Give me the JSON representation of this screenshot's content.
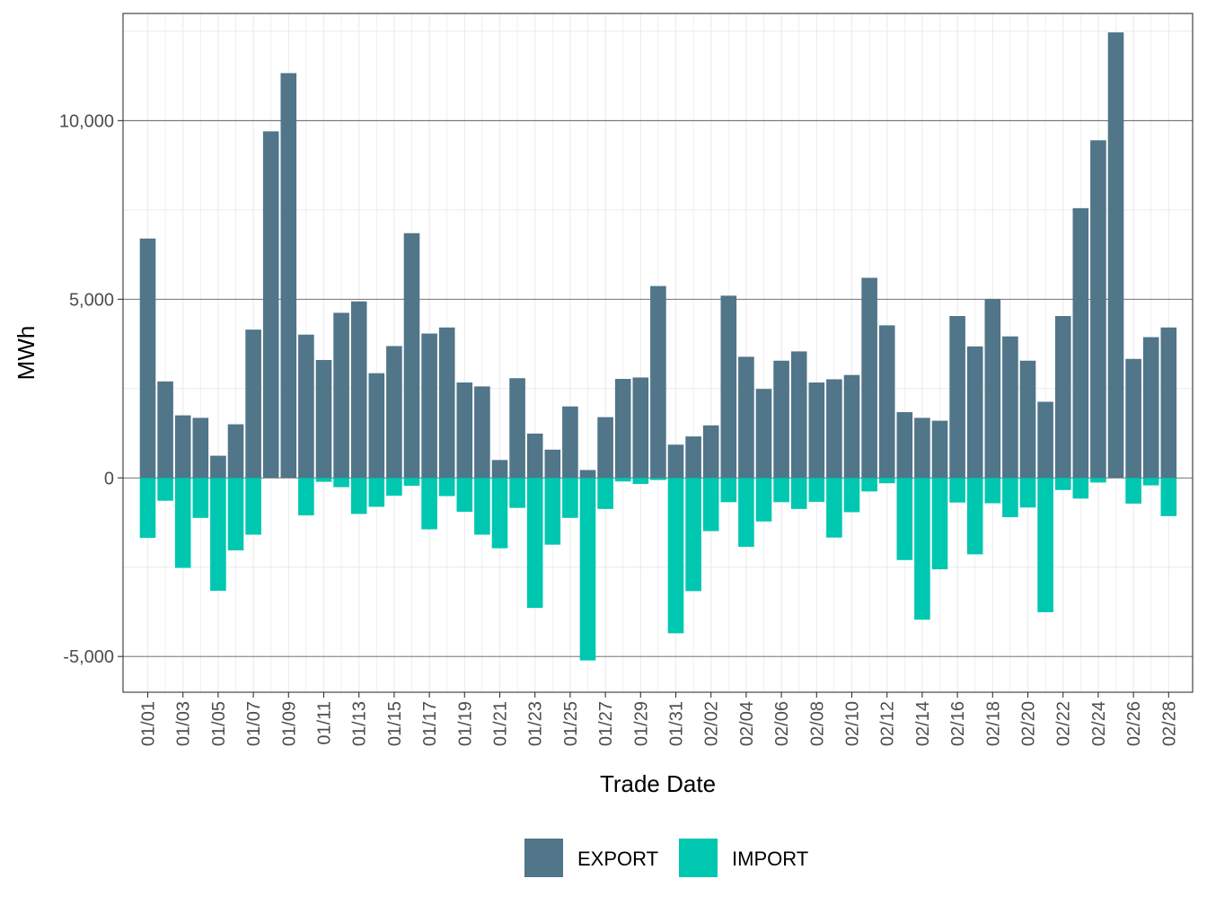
{
  "chart_data": {
    "type": "bar",
    "stacked": true,
    "xlabel": "Trade Date",
    "ylabel": "MWh",
    "ylim": [
      -6000,
      13000
    ],
    "yticks": [
      -5000,
      0,
      5000,
      10000
    ],
    "ytick_labels": [
      "-5,000",
      "0",
      "5,000",
      "10,000"
    ],
    "grid": true,
    "legend_position": "bottom",
    "categories": [
      "01/01",
      "01/02",
      "01/03",
      "01/04",
      "01/05",
      "01/06",
      "01/07",
      "01/08",
      "01/09",
      "01/10",
      "01/11",
      "01/12",
      "01/13",
      "01/14",
      "01/15",
      "01/16",
      "01/17",
      "01/18",
      "01/19",
      "01/20",
      "01/21",
      "01/22",
      "01/23",
      "01/24",
      "01/25",
      "01/26",
      "01/27",
      "01/28",
      "01/29",
      "01/30",
      "01/31",
      "02/01",
      "02/02",
      "02/03",
      "02/04",
      "02/05",
      "02/06",
      "02/07",
      "02/08",
      "02/09",
      "02/10",
      "02/11",
      "02/12",
      "02/13",
      "02/14",
      "02/15",
      "02/16",
      "02/17",
      "02/18",
      "02/19",
      "02/20",
      "02/21",
      "02/22",
      "02/23",
      "02/24",
      "02/25",
      "02/26",
      "02/27",
      "02/28"
    ],
    "xtick_labels": [
      "01/01",
      "01/03",
      "01/05",
      "01/07",
      "01/09",
      "01/11",
      "01/13",
      "01/15",
      "01/17",
      "01/19",
      "01/21",
      "01/23",
      "01/25",
      "01/27",
      "01/29",
      "01/31",
      "02/02",
      "02/04",
      "02/06",
      "02/08",
      "02/10",
      "02/12",
      "02/14",
      "02/16",
      "02/18",
      "02/20",
      "02/22",
      "02/24",
      "02/26",
      "02/28"
    ],
    "series": [
      {
        "name": "EXPORT",
        "color": "#517589",
        "values": [
          6700,
          2700,
          1750,
          1680,
          620,
          1500,
          4150,
          9700,
          11330,
          4010,
          3300,
          4620,
          4940,
          2930,
          3690,
          6850,
          4040,
          4210,
          2670,
          2560,
          500,
          2790,
          1240,
          790,
          2000,
          220,
          1700,
          2770,
          2810,
          5370,
          930,
          1160,
          1470,
          5100,
          3390,
          2490,
          3280,
          3540,
          2670,
          2760,
          2880,
          5600,
          4270,
          1840,
          1680,
          1600,
          4530,
          3680,
          5010,
          3960,
          3280,
          2130,
          4530,
          7550,
          9450,
          12470,
          3330,
          3940,
          4210
        ]
      },
      {
        "name": "IMPORT",
        "color": "#00C7B0",
        "values": [
          -1680,
          -640,
          -2520,
          -1120,
          -3160,
          -2030,
          -1590,
          0,
          0,
          -1050,
          -110,
          -260,
          -1010,
          -810,
          -500,
          -220,
          -1440,
          -510,
          -950,
          -1590,
          -1970,
          -840,
          -3640,
          -1870,
          -1120,
          -5110,
          -870,
          -100,
          -170,
          -60,
          -4350,
          -3170,
          -1490,
          -680,
          -1930,
          -1220,
          -680,
          -870,
          -670,
          -1670,
          -960,
          -380,
          -150,
          -2300,
          -3970,
          -2560,
          -690,
          -2140,
          -710,
          -1100,
          -830,
          -3760,
          -340,
          -580,
          -130,
          0,
          -720,
          -210,
          -1070
        ]
      }
    ]
  }
}
